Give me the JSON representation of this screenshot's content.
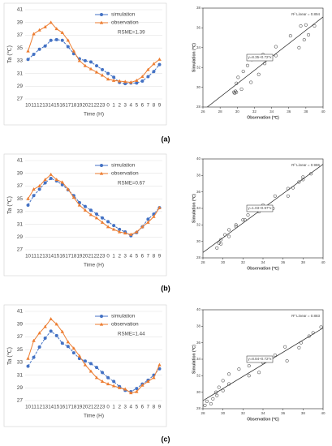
{
  "chart_data": [
    {
      "type": "line",
      "y_label": "Ta (℃)",
      "x_label": "Time (H)",
      "annotation": "RSME=1.39",
      "categories": [
        "10",
        "11",
        "12",
        "13",
        "14",
        "15",
        "16",
        "17",
        "18",
        "19",
        "20",
        "21",
        "22",
        "23",
        "0",
        "1",
        "2",
        "3",
        "4",
        "5",
        "6",
        "7",
        "8",
        "9"
      ],
      "ylim": [
        27,
        41
      ],
      "yticks": [
        27,
        29,
        31,
        33,
        35,
        37,
        39,
        41
      ],
      "series": [
        {
          "name": "simulation",
          "color": "#4472c4",
          "marker": "circle",
          "values": [
            33.2,
            34.0,
            34.8,
            35.3,
            36.2,
            36.3,
            36.2,
            35.2,
            34.1,
            33.3,
            33.0,
            32.8,
            32.2,
            31.6,
            31.0,
            30.4,
            29.6,
            29.4,
            29.5,
            29.5,
            29.8,
            30.5,
            31.3,
            32.4
          ]
        },
        {
          "name": "observation",
          "color": "#ed7d31",
          "marker": "triangle",
          "values": [
            34.5,
            37.2,
            37.8,
            38.3,
            39.0,
            38.0,
            37.4,
            36.2,
            34.5,
            33.0,
            32.2,
            31.7,
            31.2,
            30.7,
            30.1,
            29.9,
            29.8,
            29.7,
            29.6,
            29.9,
            30.5,
            31.6,
            32.5,
            33.2
          ]
        }
      ]
    },
    {
      "type": "scatter",
      "x_label": "Observation (℃)",
      "y_label": "Simulation (℃)",
      "r2": "R² Linear = 0.894",
      "equation": "y=8.35+0.72*x",
      "xlim": [
        26,
        40
      ],
      "xticks": [
        26,
        28,
        30,
        32,
        34,
        36,
        38,
        40
      ],
      "ylim": [
        28,
        38
      ],
      "yticks": [
        28,
        30,
        32,
        34,
        36,
        38
      ],
      "x": [
        34.5,
        37.2,
        37.8,
        38.3,
        39.0,
        38.0,
        37.4,
        36.2,
        34.5,
        33.0,
        32.2,
        31.7,
        31.2,
        30.7,
        30.1,
        29.9,
        29.8,
        29.7,
        29.6,
        29.9,
        30.5,
        31.6,
        32.5,
        33.2
      ],
      "y": [
        33.2,
        34.0,
        34.8,
        35.3,
        36.2,
        36.3,
        36.2,
        35.2,
        34.1,
        33.3,
        33.0,
        32.8,
        32.2,
        31.6,
        31.0,
        30.4,
        29.6,
        29.4,
        29.5,
        29.5,
        29.8,
        30.5,
        31.3,
        32.4
      ]
    },
    {
      "type": "line",
      "y_label": "Ta (℃)",
      "x_label": "Time (H)",
      "annotation": "RSME=0.67",
      "categories": [
        "10",
        "11",
        "12",
        "13",
        "14",
        "15",
        "16",
        "17",
        "18",
        "19",
        "20",
        "21",
        "22",
        "23",
        "0",
        "1",
        "2",
        "3",
        "4",
        "5",
        "6",
        "7",
        "8",
        "9"
      ],
      "ylim": [
        27,
        41
      ],
      "yticks": [
        27,
        29,
        31,
        33,
        35,
        37,
        39,
        41
      ],
      "series": [
        {
          "name": "simulation",
          "color": "#4472c4",
          "marker": "circle",
          "values": [
            34.0,
            35.5,
            36.5,
            37.5,
            38.2,
            37.8,
            37.2,
            36.4,
            35.5,
            34.4,
            33.8,
            33.2,
            32.6,
            32.0,
            31.4,
            30.8,
            30.2,
            29.8,
            29.2,
            29.7,
            30.6,
            31.8,
            32.6,
            33.6
          ]
        },
        {
          "name": "observation",
          "color": "#ed7d31",
          "marker": "triangle",
          "values": [
            35.0,
            36.5,
            37.0,
            38.0,
            38.8,
            38.0,
            37.6,
            36.5,
            35.2,
            34.0,
            33.2,
            32.5,
            32.0,
            31.3,
            30.6,
            30.2,
            29.8,
            29.6,
            29.4,
            29.8,
            30.6,
            31.3,
            32.2,
            33.6
          ]
        }
      ]
    },
    {
      "type": "scatter",
      "x_label": "Observation (℃)",
      "y_label": "Simulation (℃)",
      "r2": "R² Linear = 0.986",
      "equation": "y=1.03+0.97*x",
      "xlim": [
        28,
        40
      ],
      "xticks": [
        28,
        30,
        32,
        34,
        36,
        38,
        40
      ],
      "ylim": [
        28,
        40
      ],
      "yticks": [
        28,
        30,
        32,
        34,
        36,
        38,
        40
      ],
      "x": [
        35.0,
        36.5,
        37.0,
        38.0,
        38.8,
        38.0,
        37.6,
        36.5,
        35.2,
        34.0,
        33.2,
        32.5,
        32.0,
        31.3,
        30.6,
        30.2,
        29.8,
        29.6,
        29.4,
        29.8,
        30.6,
        31.3,
        32.2,
        33.6
      ],
      "y": [
        34.0,
        35.5,
        36.5,
        37.5,
        38.2,
        37.8,
        37.2,
        36.4,
        35.5,
        34.4,
        33.8,
        33.2,
        32.6,
        32.0,
        31.4,
        30.8,
        30.2,
        29.8,
        29.2,
        29.7,
        30.6,
        31.8,
        32.6,
        33.6
      ]
    },
    {
      "type": "line",
      "y_label": "Ta (℃)",
      "x_label": "Time (H)",
      "annotation": "RSME=1.44",
      "categories": [
        "10",
        "11",
        "12",
        "13",
        "14",
        "15",
        "16",
        "17",
        "18",
        "19",
        "20",
        "21",
        "22",
        "23",
        "0",
        "1",
        "2",
        "3",
        "4",
        "5",
        "6",
        "7",
        "8",
        "9"
      ],
      "ylim": [
        27,
        41
      ],
      "yticks": [
        27,
        29,
        31,
        33,
        35,
        37,
        39,
        41
      ],
      "series": [
        {
          "name": "simulation",
          "color": "#4472c4",
          "marker": "circle",
          "values": [
            32.4,
            33.8,
            35.4,
            36.8,
            37.9,
            37.2,
            36.0,
            35.5,
            34.5,
            33.6,
            33.2,
            32.8,
            32.2,
            31.4,
            30.6,
            30.0,
            29.2,
            28.6,
            28.4,
            28.9,
            29.6,
            30.2,
            31.0,
            32.0
          ]
        },
        {
          "name": "observation",
          "color": "#ed7d31",
          "marker": "triangle",
          "values": [
            33.6,
            36.4,
            37.6,
            38.6,
            39.8,
            39.0,
            37.8,
            36.2,
            35.2,
            34.0,
            32.6,
            31.6,
            30.6,
            30.0,
            29.6,
            29.3,
            29.0,
            28.8,
            28.2,
            28.4,
            29.4,
            30.0,
            30.6,
            32.6
          ]
        }
      ]
    },
    {
      "type": "scatter",
      "x_label": "Observation (℃)",
      "y_label": "Simulation (℃)",
      "r2": "R² Linear = 0.883",
      "equation": "y=8.84+0.72*x",
      "xlim": [
        28,
        40
      ],
      "xticks": [
        28,
        30,
        32,
        34,
        36,
        38,
        40
      ],
      "ylim": [
        28,
        40
      ],
      "yticks": [
        28,
        30,
        32,
        34,
        36,
        38,
        40
      ],
      "x": [
        33.6,
        36.4,
        37.6,
        38.6,
        39.8,
        39.0,
        37.8,
        36.2,
        35.2,
        34.0,
        32.6,
        31.6,
        30.6,
        30.0,
        29.6,
        29.3,
        29.0,
        28.8,
        28.2,
        28.4,
        29.4,
        30.0,
        30.6,
        32.6
      ],
      "y": [
        32.4,
        33.8,
        35.4,
        36.8,
        37.9,
        37.2,
        36.0,
        35.5,
        34.5,
        33.6,
        33.2,
        32.8,
        32.2,
        31.4,
        30.6,
        30.0,
        29.2,
        28.6,
        28.4,
        28.9,
        29.6,
        30.2,
        31.0,
        32.0
      ]
    }
  ],
  "panel_labels": [
    "(a)",
    "(b)",
    "(c)"
  ]
}
